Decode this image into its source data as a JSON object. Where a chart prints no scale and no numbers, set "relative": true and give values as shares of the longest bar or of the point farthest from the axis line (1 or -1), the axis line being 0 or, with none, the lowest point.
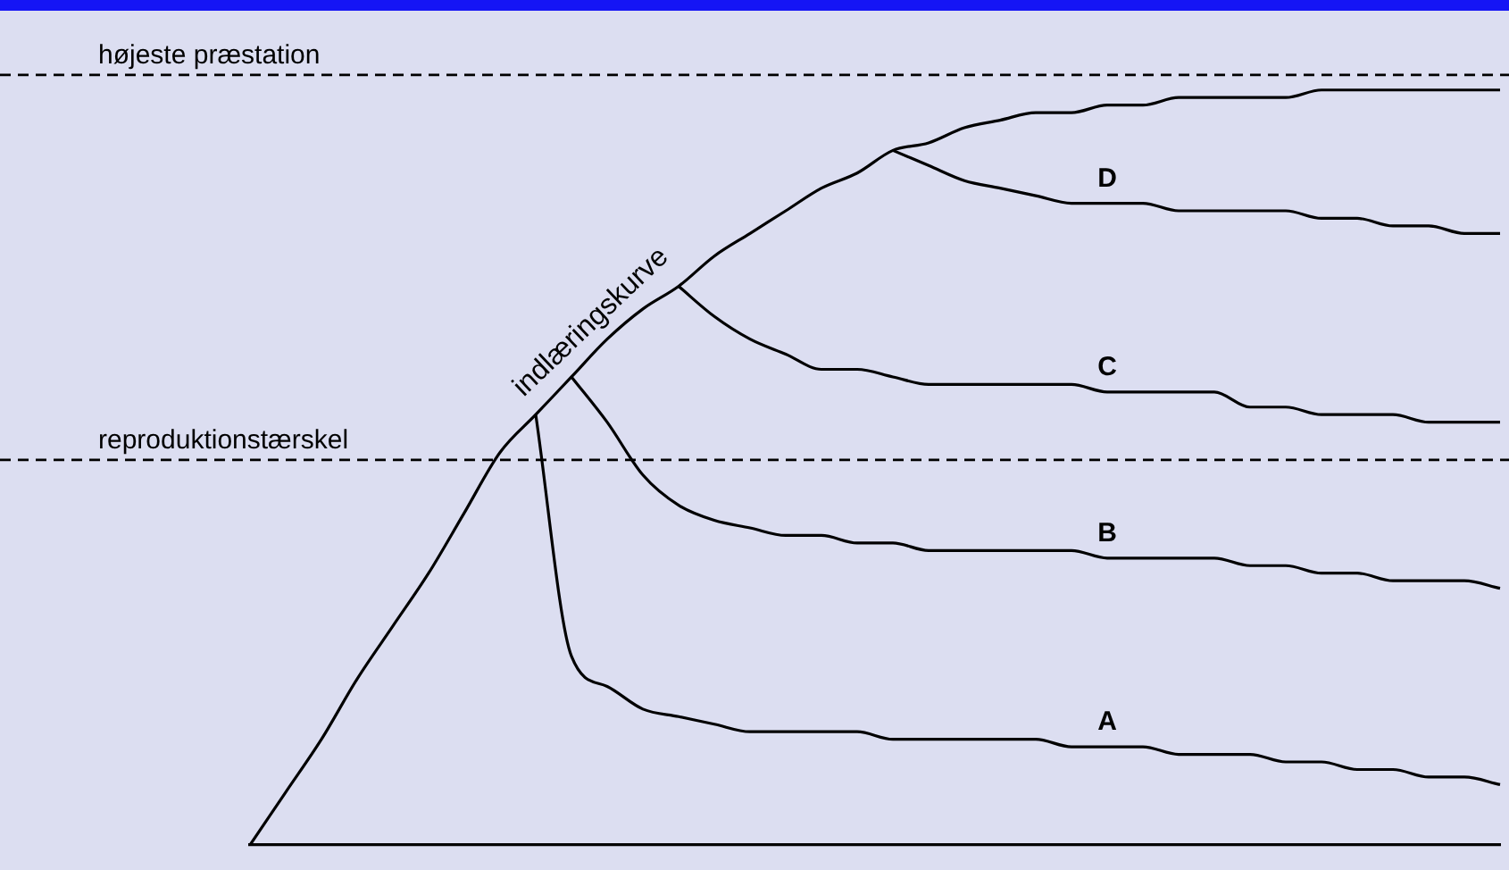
{
  "chart_data": {
    "type": "line",
    "relative": true,
    "legend": false,
    "grid": false,
    "marker": "none",
    "line_style": "solid",
    "categories": [
      null,
      null,
      null,
      null,
      null,
      null,
      null,
      null,
      null,
      null,
      null,
      null,
      null,
      null,
      null,
      null,
      null,
      null,
      null,
      null,
      null,
      null,
      null,
      null,
      null,
      null,
      null,
      null,
      null,
      null,
      null,
      null,
      null,
      null,
      null,
      null
    ],
    "series": [
      {
        "name": "indlæringskurve",
        "color": "#000000",
        "values": [
          0,
          0.07,
          0.14,
          0.22,
          0.29,
          0.36,
          0.44,
          0.52,
          0.57,
          0.62,
          0.67,
          0.71,
          0.74,
          0.78,
          0.81,
          0.84,
          0.87,
          0.89,
          0.92,
          0.93,
          0.95,
          0.96,
          0.97,
          0.97,
          0.98,
          0.98,
          0.99,
          0.99,
          0.99,
          0.99,
          1,
          1,
          1,
          1,
          1,
          1
        ]
      },
      {
        "name": "A",
        "color": "#000000",
        "values": [
          null,
          null,
          null,
          null,
          null,
          null,
          null,
          null,
          0.57,
          0.25,
          0.21,
          0.18,
          0.17,
          0.16,
          0.15,
          0.15,
          0.15,
          0.15,
          0.14,
          0.14,
          0.14,
          0.14,
          0.14,
          0.13,
          0.13,
          0.13,
          0.12,
          0.12,
          0.12,
          0.11,
          0.11,
          0.1,
          0.1,
          0.09,
          0.09,
          0.08
        ]
      },
      {
        "name": "B",
        "color": "#000000",
        "values": [
          null,
          null,
          null,
          null,
          null,
          null,
          null,
          null,
          null,
          0.62,
          0.56,
          0.49,
          0.45,
          0.43,
          0.42,
          0.41,
          0.41,
          0.4,
          0.4,
          0.39,
          0.39,
          0.39,
          0.39,
          0.39,
          0.38,
          0.38,
          0.38,
          0.38,
          0.37,
          0.37,
          0.36,
          0.36,
          0.35,
          0.35,
          0.35,
          0.34
        ]
      },
      {
        "name": "C",
        "color": "#000000",
        "values": [
          null,
          null,
          null,
          null,
          null,
          null,
          null,
          null,
          null,
          null,
          null,
          null,
          0.74,
          0.7,
          0.67,
          0.65,
          0.63,
          0.63,
          0.62,
          0.61,
          0.61,
          0.61,
          0.61,
          0.61,
          0.6,
          0.6,
          0.6,
          0.6,
          0.58,
          0.58,
          0.57,
          0.57,
          0.57,
          0.56,
          0.56,
          0.56
        ]
      },
      {
        "name": "D",
        "color": "#000000",
        "values": [
          null,
          null,
          null,
          null,
          null,
          null,
          null,
          null,
          null,
          null,
          null,
          null,
          null,
          null,
          null,
          null,
          null,
          null,
          0.92,
          0.9,
          0.88,
          0.87,
          0.86,
          0.85,
          0.85,
          0.85,
          0.84,
          0.84,
          0.84,
          0.84,
          0.83,
          0.83,
          0.82,
          0.82,
          0.81,
          0.81
        ]
      }
    ],
    "ref_lines": [
      {
        "axis": "y",
        "value": 1.02,
        "label": "højeste præstation",
        "color": "#000000",
        "line_style": "dashed"
      },
      {
        "axis": "y",
        "value": 0.51,
        "label": "reproduktionstærskel",
        "color": "#000000",
        "line_style": "dashed"
      }
    ]
  }
}
